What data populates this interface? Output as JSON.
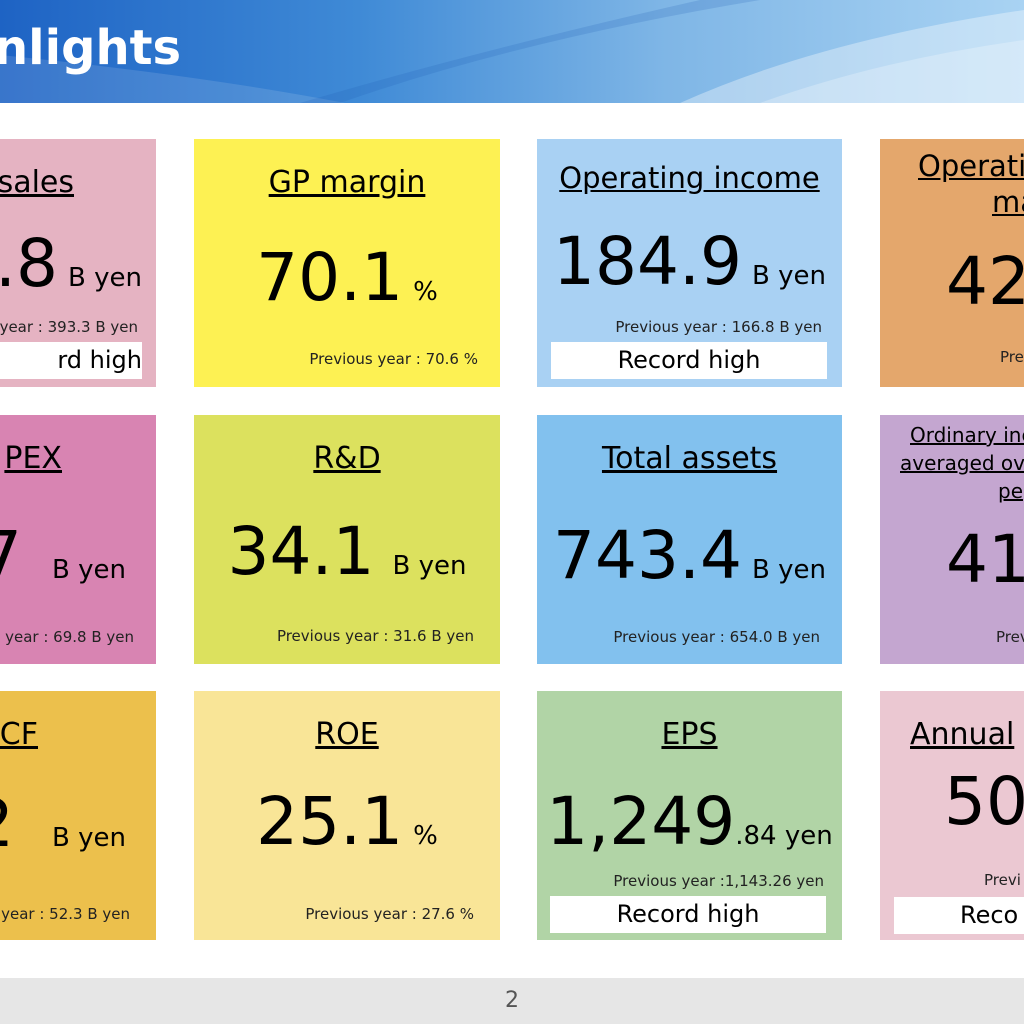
{
  "header": {
    "title": "nlights"
  },
  "cards": {
    "net_sales": {
      "label": "sales",
      "value": ".8",
      "unit": "B yen",
      "prev": "year : 393.3 B yen",
      "badge": "rd high",
      "color": "#e5b3c2"
    },
    "gp_margin": {
      "label": "GP margin",
      "value": "70.1",
      "unit": "%",
      "prev": "Previous year : 70.6 %",
      "color": "#fdf153"
    },
    "operating_income": {
      "label": "Operating income",
      "value": "184.9",
      "unit": "B yen",
      "prev": "Previous year : 166.8 B yen",
      "badge": "Record high",
      "color": "#a9d1f3"
    },
    "operating_margin": {
      "label_line1": "Operatir",
      "label_line2": "ma",
      "value": "42",
      "prev": "Pre",
      "color": "#e4a76c"
    },
    "capex": {
      "label": "PEX",
      "value": "7",
      "unit": "B yen",
      "prev": "year : 69.8 B yen",
      "color": "#d884b2"
    },
    "rnd": {
      "label": "R&D",
      "value": "34.1",
      "unit": "B yen",
      "prev": "Previous year : 31.6 B yen",
      "color": "#dce15e"
    },
    "total_assets": {
      "label": "Total assets",
      "value": "743.4",
      "unit": "B yen",
      "prev": "Previous year : 654.0 B yen",
      "color": "#82c1ee"
    },
    "ordinary_income": {
      "label_line1": "Ordinary inc",
      "label_line2": "averaged ov",
      "label_line3": "pe",
      "value": "41",
      "prev": "Prev",
      "color": "#c4a6d0"
    },
    "fcf": {
      "label": "CF",
      "value": "2",
      "unit": "B yen",
      "prev": "year : 52.3 B yen",
      "color": "#ecc04c"
    },
    "roe": {
      "label": "ROE",
      "value": "25.1",
      "unit": "%",
      "prev": "Previous year : 27.6 %",
      "color": "#f9e597"
    },
    "eps": {
      "label": "EPS",
      "value": "1,249",
      "unit": ".84 yen",
      "prev": "Previous year :1,143.26 yen",
      "badge": "Record high",
      "color": "#b1d4a6"
    },
    "annual_dividend": {
      "label": "Annual",
      "value": "50",
      "prev": "Previ",
      "badge": "Reco",
      "color": "#ebc8d2"
    }
  },
  "footer": {
    "page_number": "2"
  }
}
